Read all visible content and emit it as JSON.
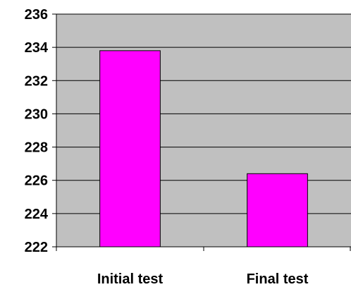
{
  "chart_data": {
    "type": "bar",
    "categories": [
      "Initial test",
      "Final test"
    ],
    "values": [
      233.8,
      226.4
    ],
    "ylim": [
      222,
      236
    ],
    "yticks": [
      "222",
      "224",
      "226",
      "228",
      "230",
      "232",
      "234",
      "236"
    ],
    "title": "",
    "xlabel": "",
    "ylabel": "",
    "grid": true,
    "legend": "none"
  },
  "colors": {
    "plot_background": "#c0c0c0",
    "bar_fill": "#ff00ff",
    "bar_stroke": "#000000",
    "gridline": "#000000",
    "axis": "#000000"
  }
}
